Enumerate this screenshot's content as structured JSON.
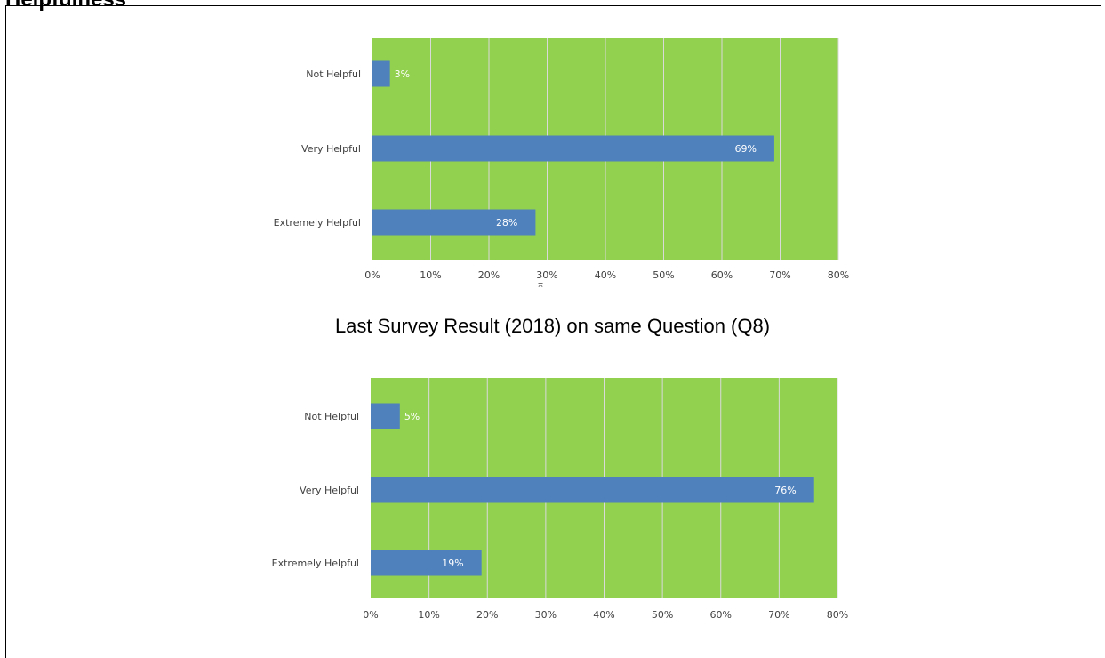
{
  "page": {
    "clipped_heading": "Helpfulness",
    "section_title": "Last Survey Result (2018) on same Question (Q8)"
  },
  "colors": {
    "plot_background": "#92d050",
    "bar": "#4f81bd",
    "gridline": "#d9d9d9",
    "label_text": "#404040",
    "data_label_text": "#ffffff"
  },
  "chart_data": [
    {
      "type": "bar",
      "orientation": "horizontal",
      "title": "",
      "categories": [
        "Not Helpful",
        "Very Helpful",
        "Extremely Helpful"
      ],
      "values": [
        3,
        69,
        28
      ],
      "data_labels": [
        "3%",
        "69%",
        "28%"
      ],
      "xlim": [
        0,
        80
      ],
      "x_ticks": [
        "0%",
        "10%",
        "20%",
        "30%",
        "40%",
        "50%",
        "60%",
        "70%",
        "80%"
      ],
      "grid": true,
      "legend": "none"
    },
    {
      "type": "bar",
      "orientation": "horizontal",
      "title": "",
      "categories": [
        "Not Helpful",
        "Very Helpful",
        "Extremely Helpful"
      ],
      "values": [
        5,
        76,
        19
      ],
      "data_labels": [
        "5%",
        "76%",
        "19%"
      ],
      "xlim": [
        0,
        80
      ],
      "x_ticks": [
        "0%",
        "10%",
        "20%",
        "30%",
        "40%",
        "50%",
        "60%",
        "70%",
        "80%"
      ],
      "grid": true,
      "legend": "none"
    }
  ]
}
